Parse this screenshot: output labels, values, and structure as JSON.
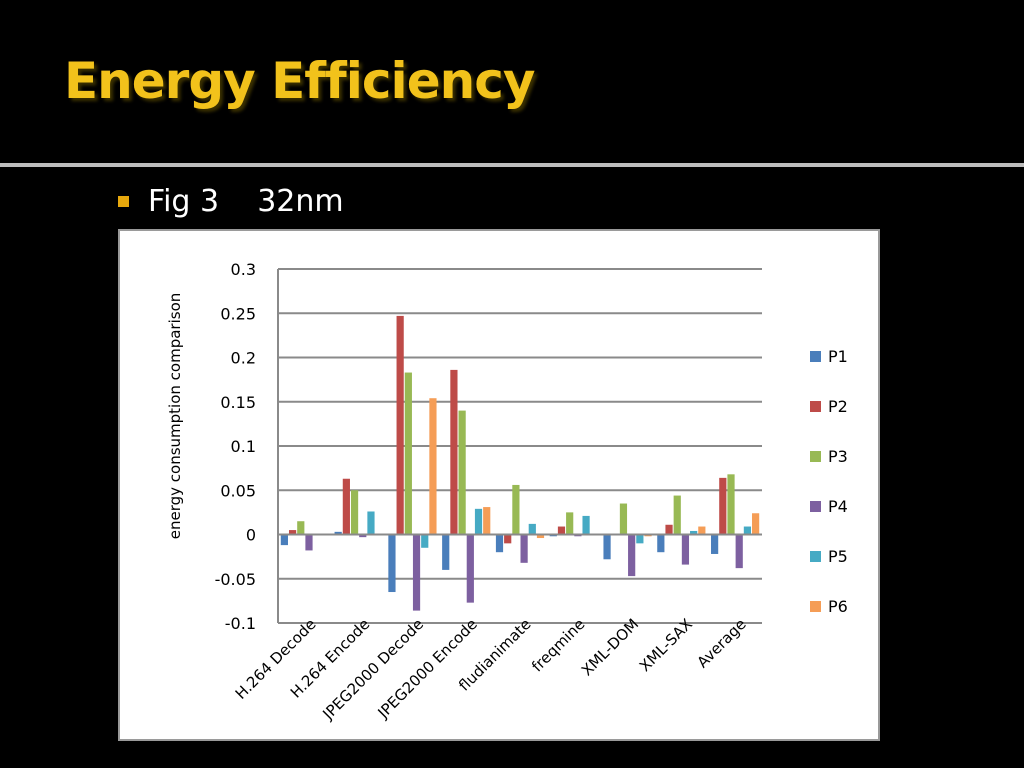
{
  "slide": {
    "title": "Energy Efficiency",
    "bullet": "Fig 3    32nm"
  },
  "colors": {
    "background": "#000000",
    "title": "#f2c21b",
    "bullet_marker": "#e7a80d"
  },
  "chart_data": {
    "type": "bar",
    "title": "",
    "xlabel": "",
    "ylabel": "energy  consumption comparison",
    "ylim": [
      -0.1,
      0.3
    ],
    "yticks": [
      -0.1,
      -0.05,
      0,
      0.05,
      0.1,
      0.15,
      0.2,
      0.25,
      0.3
    ],
    "ytick_labels": [
      "-0.1",
      "-0.05",
      "0",
      "0.05",
      "0.1",
      "0.15",
      "0.2",
      "0.25",
      "0.3"
    ],
    "grid": true,
    "legend_position": "right",
    "categories": [
      "H.264 Decode",
      "H.264 Encode",
      "JPEG2000 Decode",
      "JPEG2000 Encode",
      "fludianimate",
      "freqmine",
      "XML-DOM",
      "XML-SAX",
      "Average"
    ],
    "series": [
      {
        "name": "P1",
        "color": "#4a7ebb",
        "values": [
          -0.012,
          0.003,
          -0.065,
          -0.04,
          -0.02,
          -0.002,
          -0.028,
          -0.02,
          -0.022
        ]
      },
      {
        "name": "P2",
        "color": "#be4b48",
        "values": [
          0.005,
          0.063,
          0.247,
          0.186,
          -0.01,
          0.009,
          0.0,
          0.011,
          0.064
        ]
      },
      {
        "name": "P3",
        "color": "#98b954",
        "values": [
          0.015,
          0.05,
          0.183,
          0.14,
          0.056,
          0.025,
          0.035,
          0.044,
          0.068
        ]
      },
      {
        "name": "P4",
        "color": "#7d60a0",
        "values": [
          -0.018,
          -0.003,
          -0.086,
          -0.077,
          -0.032,
          -0.002,
          -0.047,
          -0.034,
          -0.038
        ]
      },
      {
        "name": "P5",
        "color": "#46aac4",
        "values": [
          0.0,
          0.026,
          -0.015,
          0.029,
          0.012,
          0.021,
          -0.01,
          0.004,
          0.009
        ]
      },
      {
        "name": "P6",
        "color": "#f59d56",
        "values": [
          0.0,
          0.0,
          0.154,
          0.031,
          -0.004,
          -0.001,
          -0.002,
          0.009,
          0.024
        ]
      }
    ]
  }
}
